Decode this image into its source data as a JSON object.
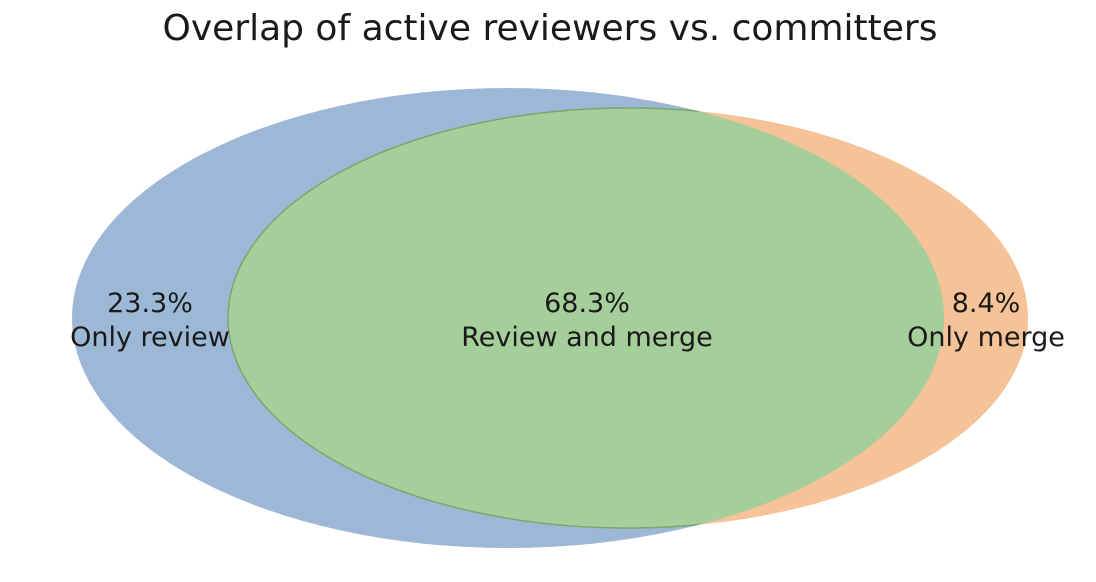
{
  "chart_data": {
    "type": "venn",
    "title": "Overlap of active reviewers vs. committers",
    "regions": [
      {
        "id": "only_a",
        "label": "Only review",
        "value_label": "23.3%",
        "value": 23.3,
        "color": "#9db8d7"
      },
      {
        "id": "both",
        "label": "Review and merge",
        "value_label": "68.3%",
        "value": 68.3,
        "color": "#a6ce9b"
      },
      {
        "id": "only_b",
        "label": "Only merge",
        "value_label": "8.4%",
        "value": 8.4,
        "color": "#f5c397"
      }
    ],
    "edge_color_intersection": "#7aa86a"
  }
}
